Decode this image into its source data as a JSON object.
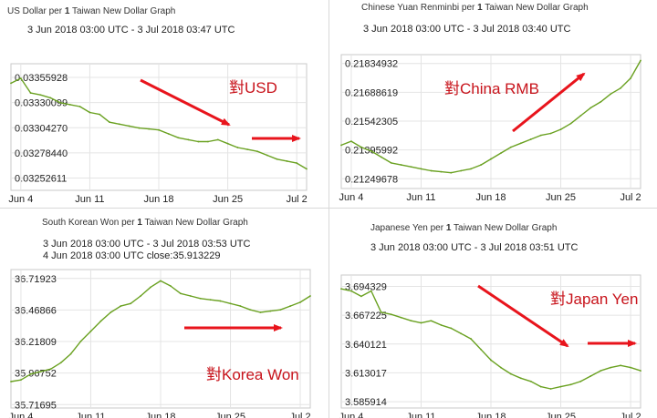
{
  "colors": {
    "line": "#6aa121",
    "arrow": "#e8141c",
    "grid": "#e4e4e4",
    "frame": "#c8c8c8",
    "label": "#c8141c"
  },
  "charts": [
    {
      "id": "usd",
      "title_pre": "US Dollar per ",
      "title_bold": "1",
      "title_post": " Taiwan New Dollar Graph",
      "range": "3 Jun 2018 03:00 UTC - 3 Jul 2018 03:47 UTC",
      "close_text": "",
      "annotation": "對USD"
    },
    {
      "id": "cny",
      "title_pre": "Chinese Yuan Renminbi per ",
      "title_bold": "1",
      "title_post": " Taiwan New Dollar Graph",
      "range": "3 Jun 2018 03:00 UTC - 3 Jul 2018 03:40 UTC",
      "close_text": "",
      "annotation": "對China RMB"
    },
    {
      "id": "krw",
      "title_pre": "South Korean Won per ",
      "title_bold": "1",
      "title_post": " Taiwan New Dollar Graph",
      "range": "3 Jun 2018 03:00 UTC - 3 Jul 2018 03:53 UTC",
      "close_text": "4 Jun 2018 03:00 UTC  close:35.913229",
      "annotation": "對Korea Won"
    },
    {
      "id": "jpy",
      "title_pre": "Japanese Yen per ",
      "title_bold": "1",
      "title_post": " Taiwan New Dollar Graph",
      "range": "3 Jun 2018 03:00 UTC - 3 Jul 2018 03:51 UTC",
      "close_text": "",
      "annotation": "對Japan Yen"
    }
  ],
  "chart_data": [
    {
      "type": "line",
      "series": [
        {
          "name": "",
          "x": [
            3,
            4,
            5,
            6,
            7,
            8,
            9,
            10,
            11,
            12,
            13,
            14,
            15,
            16,
            17,
            18,
            19,
            20,
            21,
            22,
            23,
            24,
            25,
            26,
            27,
            28,
            29,
            30,
            31,
            32,
            33
          ],
          "y": [
            0.0335,
            0.03355,
            0.0334,
            0.03338,
            0.03335,
            0.0333,
            0.03328,
            0.03326,
            0.0332,
            0.03318,
            0.0331,
            0.03308,
            0.03306,
            0.03304,
            0.03303,
            0.03302,
            0.03298,
            0.03294,
            0.03292,
            0.0329,
            0.0329,
            0.03292,
            0.03288,
            0.03284,
            0.03282,
            0.0328,
            0.03276,
            0.03272,
            0.0327,
            0.03268,
            0.03262
          ]
        }
      ],
      "xticks": [
        4,
        11,
        18,
        25,
        32
      ],
      "xticklabels": [
        "Jun 4",
        "Jun 11",
        "Jun 18",
        "Jun 25",
        "Jul 2"
      ],
      "yticks": [
        0.03252611,
        0.0327844,
        0.0330427,
        0.03330099,
        0.03355928
      ],
      "yticklabels": [
        "0.03252611",
        "0.03278440",
        "0.03304270",
        "0.03330099",
        "0.03355928"
      ],
      "xlim": [
        3,
        33
      ],
      "ylim": [
        0.0324,
        0.0337
      ]
    },
    {
      "type": "line",
      "series": [
        {
          "name": "",
          "x": [
            3,
            4,
            5,
            6,
            7,
            8,
            9,
            10,
            11,
            12,
            13,
            14,
            15,
            16,
            17,
            18,
            19,
            20,
            21,
            22,
            23,
            24,
            25,
            26,
            27,
            28,
            29,
            30,
            31,
            32,
            33
          ],
          "y": [
            0.2142,
            0.2144,
            0.2141,
            0.2139,
            0.2136,
            0.2133,
            0.2132,
            0.2131,
            0.213,
            0.2129,
            0.21285,
            0.2128,
            0.2129,
            0.213,
            0.2132,
            0.2135,
            0.2138,
            0.2141,
            0.2143,
            0.2145,
            0.2147,
            0.2148,
            0.215,
            0.2153,
            0.2157,
            0.2161,
            0.2164,
            0.2168,
            0.2171,
            0.2176,
            0.2185
          ]
        }
      ],
      "xticks": [
        4,
        11,
        18,
        25,
        32
      ],
      "xticklabels": [
        "Jun 4",
        "Jun 11",
        "Jun 18",
        "Jun 25",
        "Jul 2"
      ],
      "yticks": [
        0.21249678,
        0.21395992,
        0.21542305,
        0.21688619,
        0.21834932
      ],
      "yticklabels": [
        "0.21249678",
        "0.21395992",
        "0.21542305",
        "0.21688619",
        "0.21834932"
      ],
      "xlim": [
        3,
        33
      ],
      "ylim": [
        0.212,
        0.2188
      ]
    },
    {
      "type": "line",
      "series": [
        {
          "name": "",
          "x": [
            3,
            4,
            5,
            6,
            7,
            8,
            9,
            10,
            11,
            12,
            13,
            14,
            15,
            16,
            17,
            18,
            19,
            20,
            21,
            22,
            23,
            24,
            25,
            26,
            27,
            28,
            29,
            30,
            31,
            32,
            33
          ],
          "y": [
            35.9,
            35.913,
            35.96,
            35.98,
            36.0,
            36.05,
            36.12,
            36.22,
            36.3,
            36.38,
            36.45,
            36.5,
            36.52,
            36.58,
            36.65,
            36.7,
            36.66,
            36.6,
            36.58,
            36.56,
            36.55,
            36.54,
            36.52,
            36.5,
            36.47,
            36.45,
            36.46,
            36.47,
            36.5,
            36.53,
            36.58
          ]
        }
      ],
      "xticks": [
        4,
        11,
        18,
        25,
        32
      ],
      "xticklabels": [
        "Jun 4",
        "Jun 11",
        "Jun 18",
        "Jun 25",
        "Jul 2"
      ],
      "yticks": [
        35.71695,
        35.96752,
        36.21809,
        36.46866,
        36.71923
      ],
      "yticklabels": [
        "35.71695",
        "35.96752",
        "36.21809",
        "36.46866",
        "36.71923"
      ],
      "xlim": [
        3,
        33
      ],
      "ylim": [
        35.69,
        36.79
      ]
    },
    {
      "type": "line",
      "series": [
        {
          "name": "",
          "x": [
            3,
            4,
            5,
            6,
            7,
            8,
            9,
            10,
            11,
            12,
            13,
            14,
            15,
            16,
            17,
            18,
            19,
            20,
            21,
            22,
            23,
            24,
            25,
            26,
            27,
            28,
            29,
            30,
            31,
            32,
            33
          ],
          "y": [
            3.692,
            3.69,
            3.685,
            3.69,
            3.67,
            3.668,
            3.665,
            3.662,
            3.66,
            3.662,
            3.658,
            3.655,
            3.65,
            3.645,
            3.635,
            3.625,
            3.618,
            3.612,
            3.608,
            3.605,
            3.6,
            3.598,
            3.6,
            3.602,
            3.605,
            3.61,
            3.615,
            3.618,
            3.62,
            3.618,
            3.615
          ]
        }
      ],
      "xticks": [
        4,
        11,
        18,
        25,
        32
      ],
      "xticklabels": [
        "Jun 4",
        "Jun 11",
        "Jun 18",
        "Jun 25",
        "Jul 2"
      ],
      "yticks": [
        3.585914,
        3.613017,
        3.640121,
        3.667225,
        3.694329
      ],
      "yticklabels": [
        "3.585914",
        "3.613017",
        "3.640121",
        "3.667225",
        "3.694329"
      ],
      "xlim": [
        3,
        33
      ],
      "ylim": [
        3.58,
        3.705
      ]
    }
  ]
}
